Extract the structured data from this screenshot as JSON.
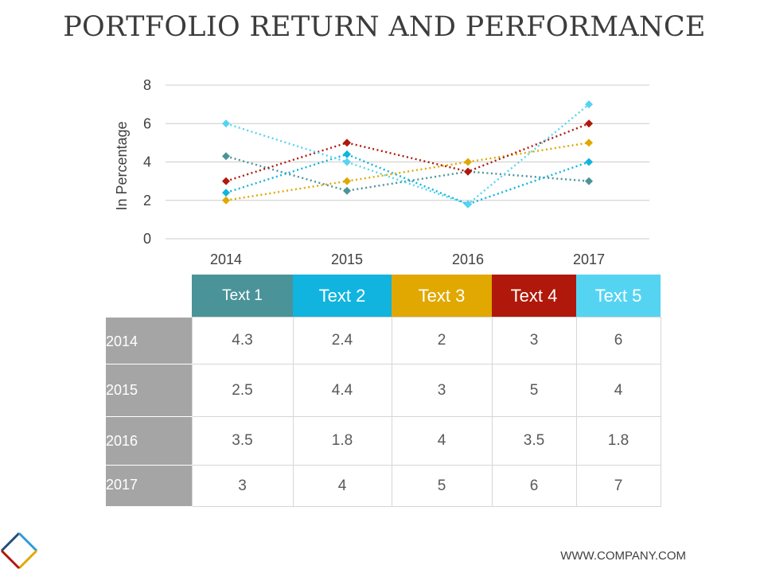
{
  "title": "PORTFOLIO RETURN AND PERFORMANCE",
  "footer": "WWW.COMPANY.COM",
  "chart_data": {
    "type": "line",
    "ylabel": "In Percentage",
    "xlabel": "",
    "ylim": [
      0,
      8
    ],
    "yticks": [
      "0",
      "2",
      "4",
      "6",
      "8"
    ],
    "grid": true,
    "markers": "diamond",
    "line_style": "dotted",
    "categories": [
      "2014",
      "2015",
      "2016",
      "2017"
    ],
    "series": [
      {
        "name": "Text 1",
        "color": "#4a9399",
        "values": [
          4.3,
          2.5,
          3.5,
          3
        ]
      },
      {
        "name": "Text 2",
        "color": "#10b4de",
        "values": [
          2.4,
          4.4,
          1.8,
          4
        ]
      },
      {
        "name": "Text 3",
        "color": "#e0a800",
        "values": [
          2,
          3,
          4,
          5
        ]
      },
      {
        "name": "Text 4",
        "color": "#b0180b",
        "values": [
          3,
          5,
          3.5,
          6
        ]
      },
      {
        "name": "Text 5",
        "color": "#55d4f2",
        "values": [
          6,
          4,
          1.8,
          7
        ]
      }
    ]
  },
  "table": {
    "rows": [
      {
        "year": "2014",
        "cells": [
          "4.3",
          "2.4",
          "2",
          "3",
          "6"
        ]
      },
      {
        "year": "2015",
        "cells": [
          "2.5",
          "4.4",
          "3",
          "5",
          "4"
        ]
      },
      {
        "year": "2016",
        "cells": [
          "3.5",
          "1.8",
          "4",
          "3.5",
          "1.8"
        ]
      },
      {
        "year": "2017",
        "cells": [
          "3",
          "4",
          "5",
          "6",
          "7"
        ]
      }
    ]
  },
  "logo_colors": [
    "#1f4e79",
    "#2e9bd6",
    "#e0a800",
    "#b0180b"
  ]
}
